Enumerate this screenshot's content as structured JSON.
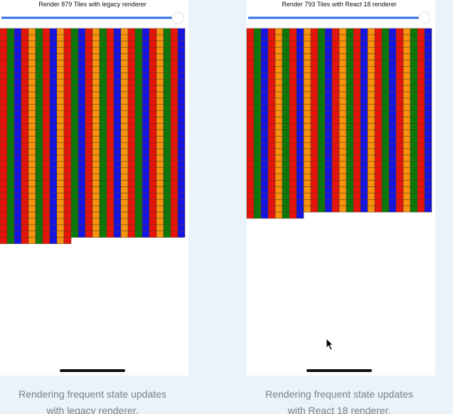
{
  "panels": [
    {
      "title": "Render 879 Tiles with legacy renderer",
      "caption": [
        "Rendering frequent state updates",
        "with legacy renderer."
      ]
    },
    {
      "title": "Render 793 Tiles with React 18 renderer",
      "caption": [
        "Rendering frequent state updates",
        "with React 18 renderer."
      ]
    }
  ]
}
